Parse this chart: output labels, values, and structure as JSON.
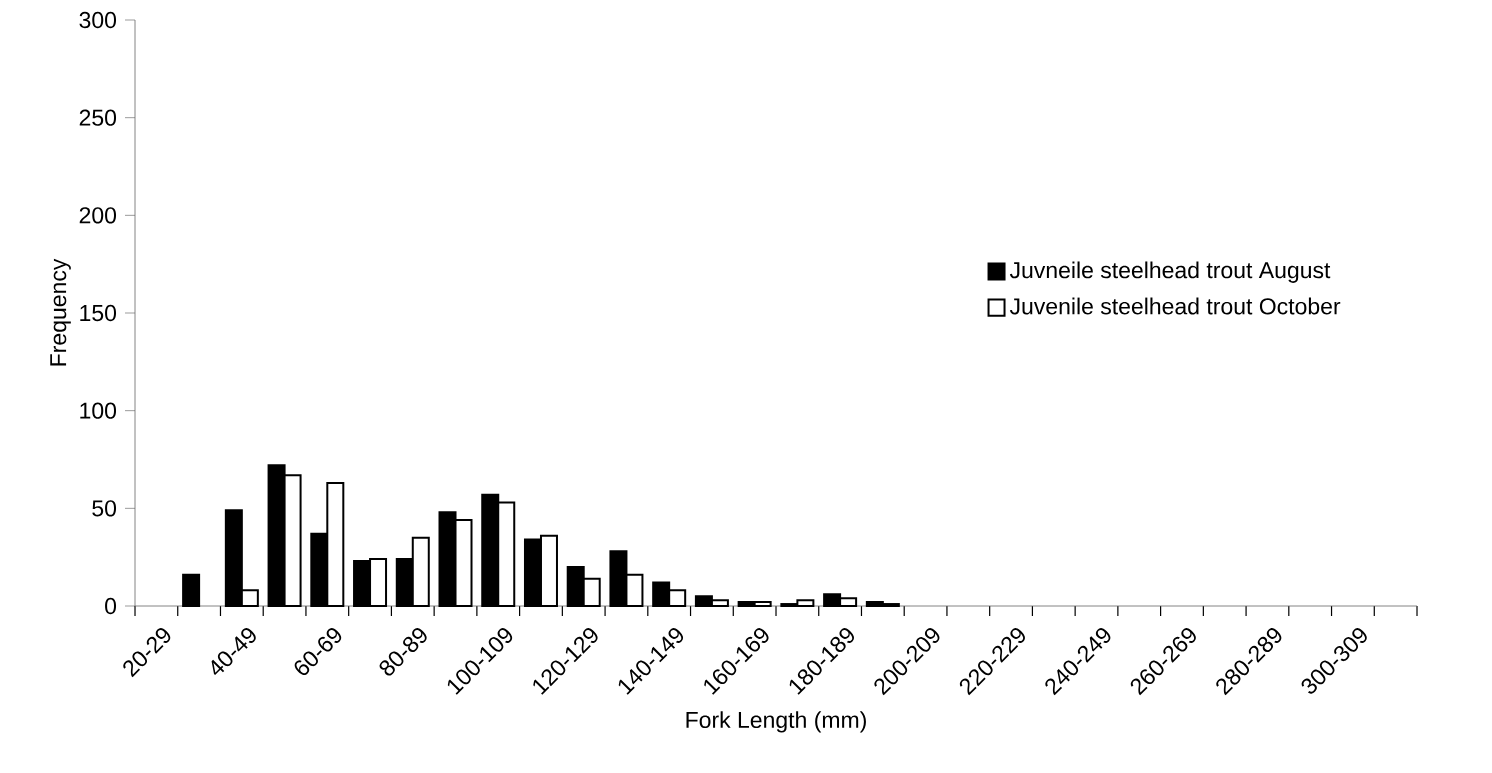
{
  "chart_data": {
    "type": "bar",
    "xlabel": "Fork Length (mm)",
    "ylabel": "Frequency",
    "categories": [
      "20-29",
      null,
      "40-49",
      null,
      "60-69",
      null,
      "80-89",
      null,
      "100-109",
      null,
      "120-129",
      null,
      "140-149",
      null,
      "160-169",
      null,
      "180-189",
      null,
      "200-209",
      null,
      "220-229",
      null,
      "240-249",
      null,
      "260-269",
      null,
      "280-289",
      null,
      "300-309",
      null
    ],
    "series": [
      {
        "name": "Juvneile steelhead trout August",
        "color": "#000000",
        "values": [
          null,
          16,
          49,
          72,
          37,
          23,
          24,
          48,
          57,
          34,
          20,
          28,
          12,
          5,
          2,
          1,
          6,
          2,
          null,
          null,
          null,
          null,
          null,
          null,
          null,
          null,
          null,
          null,
          null,
          null
        ]
      },
      {
        "name": "Juvenile steelhead trout October",
        "color": "#ffffff",
        "values": [
          null,
          null,
          8,
          67,
          63,
          24,
          35,
          44,
          53,
          36,
          14,
          16,
          8,
          3,
          2,
          3,
          4,
          1,
          null,
          null,
          null,
          null,
          null,
          null,
          null,
          null,
          null,
          null,
          null,
          null
        ]
      }
    ],
    "ylim": [
      0,
      300
    ],
    "yticks": [
      0,
      50,
      100,
      150,
      200,
      250,
      300
    ],
    "legend": "right",
    "grid": false
  }
}
